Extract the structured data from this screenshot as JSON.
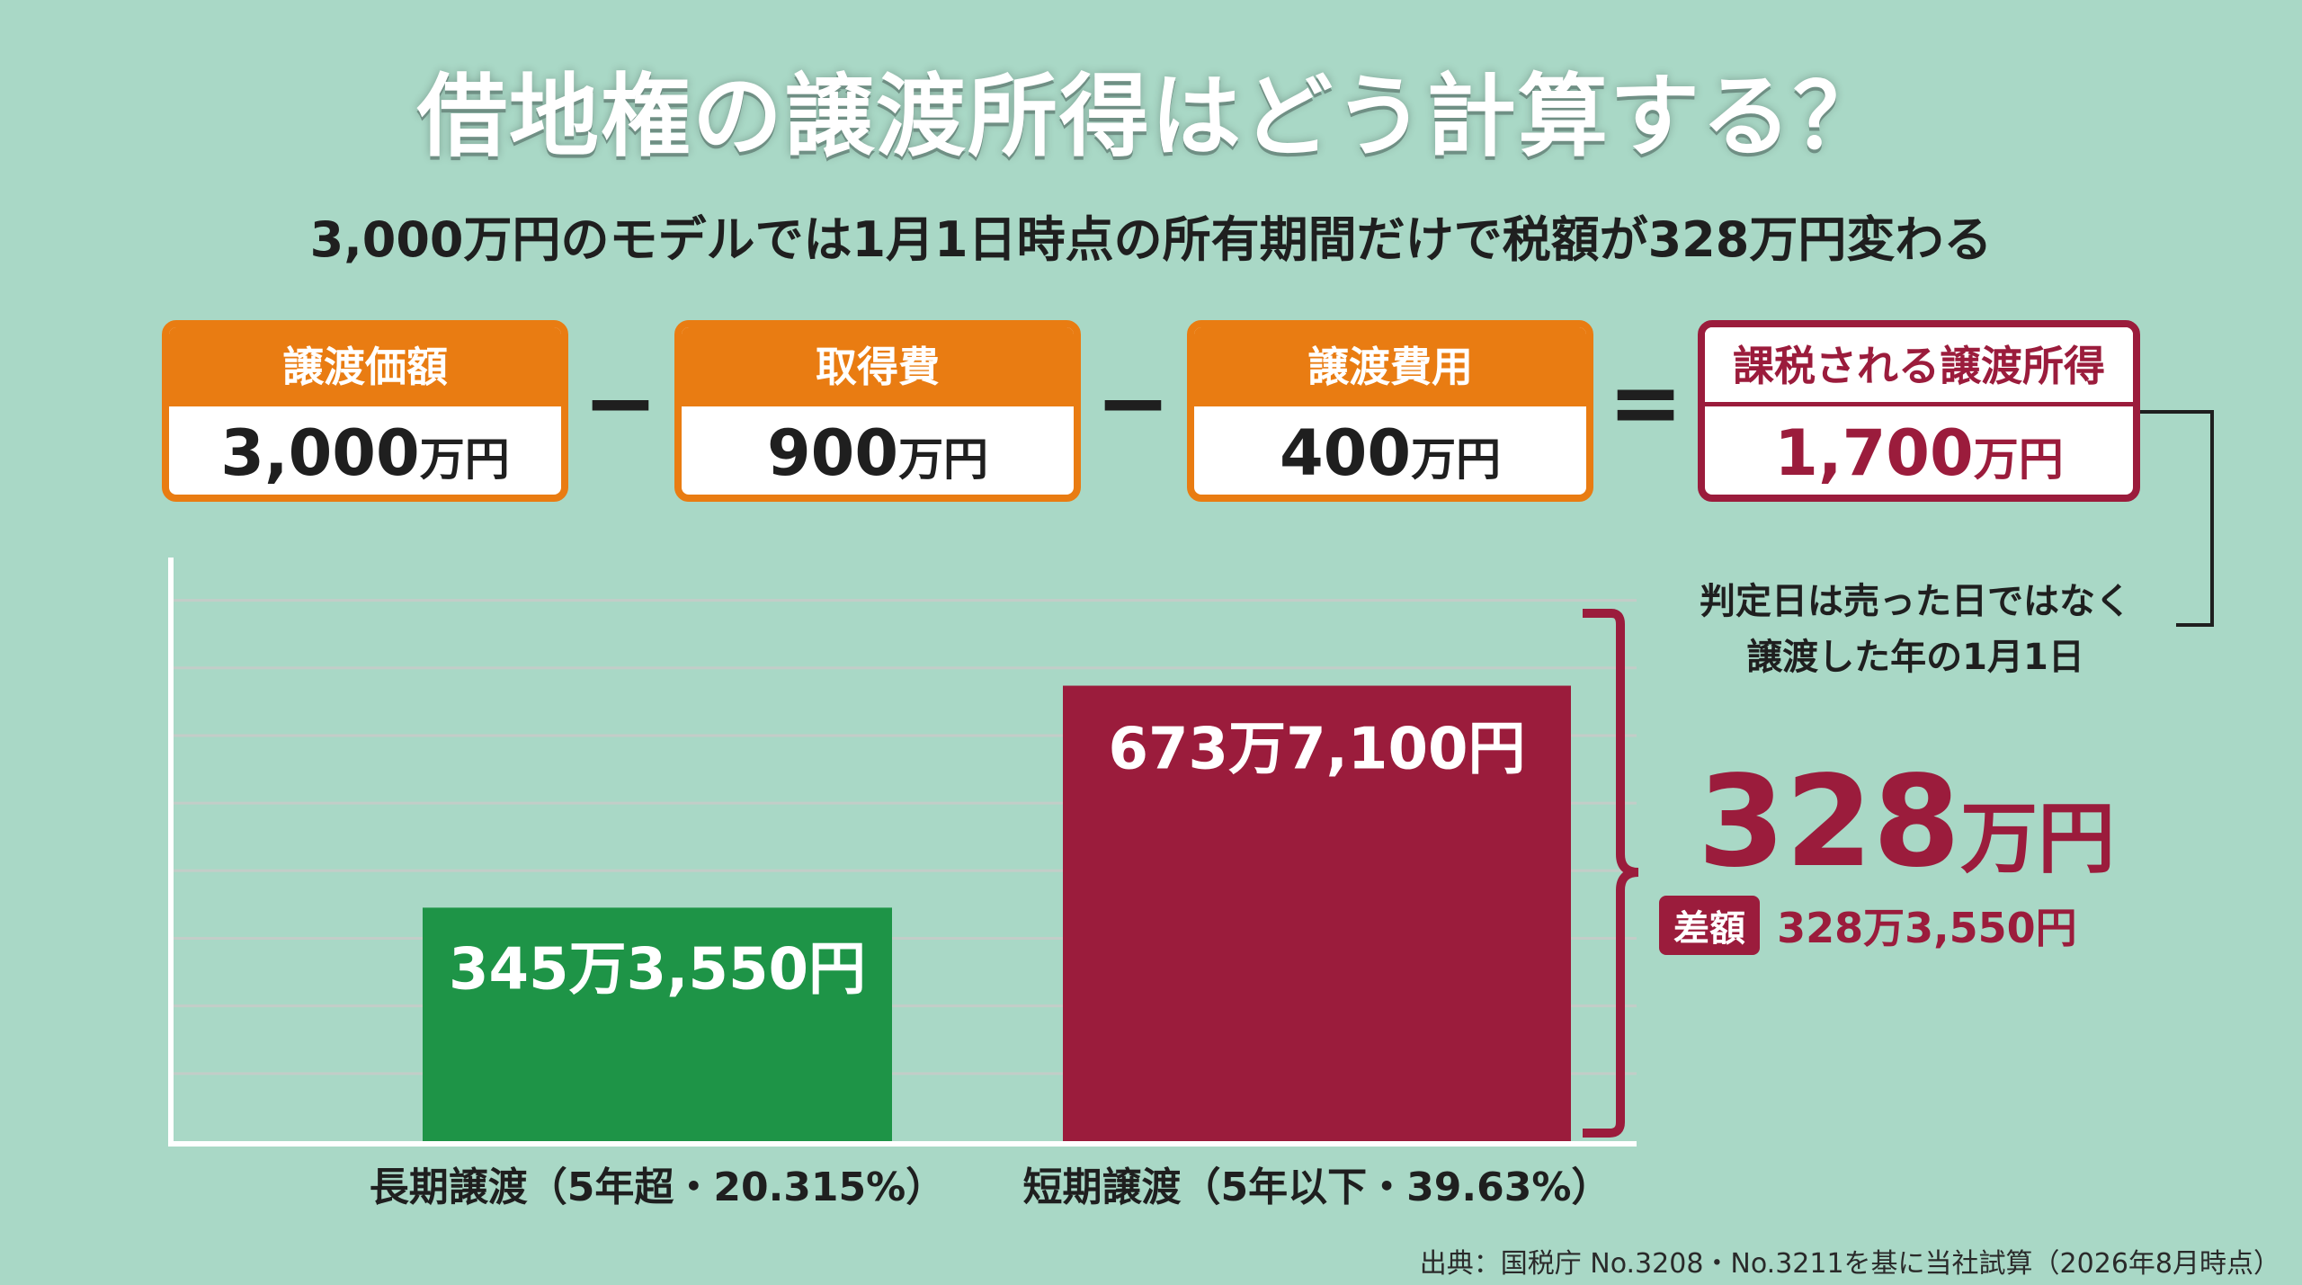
{
  "title": "借地権の譲渡所得はどう計算する？",
  "subtitle": "3,000万円のモデルでは1月1日時点の所有期間だけで税額が328万円変わる",
  "formula": {
    "items": [
      {
        "label": "譲渡価額",
        "value": "3,000",
        "unit": "万円"
      },
      {
        "label": "取得費",
        "value": "900",
        "unit": "万円"
      },
      {
        "label": "譲渡費用",
        "value": "400",
        "unit": "万円"
      },
      {
        "label": "課税される譲渡所得",
        "value": "1,700",
        "unit": "万円"
      }
    ],
    "operators": [
      "−",
      "−",
      "="
    ]
  },
  "note": {
    "line1": "判定日は売った日ではなく",
    "line2": "譲渡した年の1月1日"
  },
  "difference": {
    "big_value": "328",
    "big_unit": "万円",
    "badge": "差額",
    "exact": "328万3,550円"
  },
  "chart_data": {
    "type": "bar",
    "categories": [
      "長期譲渡（5年超・20.315%）",
      "短期譲渡（5年以下・39.63%）"
    ],
    "values": [
      3453550,
      6737100
    ],
    "value_labels": [
      "345万3,550円",
      "673万7,100円"
    ],
    "colors": [
      "#1e9447",
      "#9b1c3c"
    ],
    "ylim": [
      0,
      8500000
    ],
    "grid": true
  },
  "source": "出典：国税庁 No.3208・No.3211を基に当社試算（2026年8月時点）",
  "colors": {
    "background": "#a9d8c6",
    "orange": "#e97c12",
    "crimson": "#9b1c3c",
    "green": "#1e9447"
  }
}
